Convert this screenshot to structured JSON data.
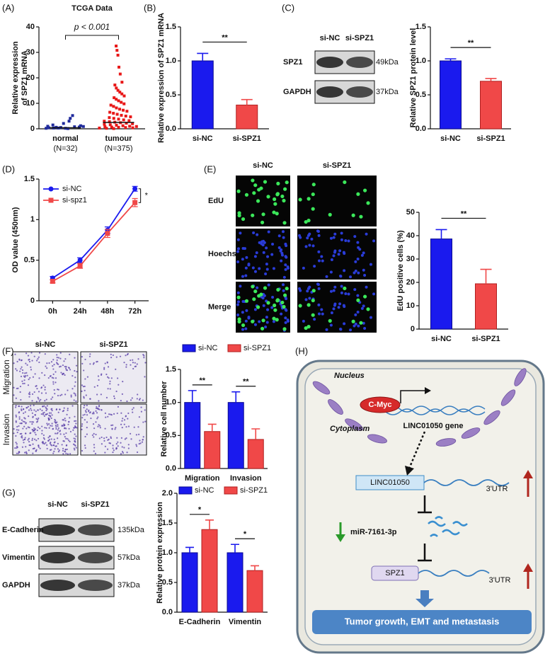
{
  "chart_data": [
    {
      "type": "strip",
      "panel": "(A)",
      "title": "TCGA Data",
      "y_label": [
        "Relative expression",
        "of SPZ1 mRNA"
      ],
      "categories": [
        "normal",
        "tumour"
      ],
      "group_sizes": [
        "(N=32)",
        "(N=375)"
      ],
      "colors": [
        "#1f2a9c",
        "#e81818"
      ],
      "values": [
        [
          0.2,
          0.3,
          0.5,
          0.1,
          0.8,
          1.2,
          0.4,
          0.6,
          2.1,
          3.0,
          5.2,
          0.9,
          1.5,
          0.3,
          0.2,
          4.1,
          0.7,
          1.0
        ],
        [
          32.5,
          30.8,
          28.9,
          24.2,
          21.5,
          18.3,
          17.2,
          16.0,
          15.1,
          14.4,
          13.7,
          12.9,
          12.2,
          11.6,
          11.0,
          10.4,
          9.8,
          9.3,
          8.8,
          8.2,
          7.7,
          7.3,
          6.9,
          6.5,
          6.1,
          5.7,
          5.3,
          5.0,
          4.7,
          4.4,
          4.1,
          3.8,
          3.5,
          3.2,
          3.0,
          2.8,
          2.6,
          2.4,
          2.2,
          2.0,
          1.8,
          1.6,
          1.4,
          1.2,
          1.0,
          0.9,
          0.8,
          0.7,
          0.6,
          0.5,
          0.4,
          0.3,
          0.2,
          0.1
        ]
      ],
      "means": [
        0.4,
        2.5
      ],
      "annotation": "p < 0.001",
      "ylim": [
        0,
        40
      ],
      "yticks": [
        0,
        10,
        20,
        30,
        40
      ]
    },
    {
      "type": "bar",
      "panel": "(B)",
      "y_label": "Relative expression of SPZ1 mRNA",
      "categories": [
        "si-NC",
        "si-SPZ1"
      ],
      "values": [
        1.0,
        0.35
      ],
      "errors": [
        0.11,
        0.08
      ],
      "colors": [
        "#1a1aee",
        "#f04848"
      ],
      "annotation": "**",
      "ylim": [
        0,
        1.5
      ],
      "yticks": [
        {
          "value": 0,
          "label": "0.0"
        },
        0.5,
        {
          "value": 1,
          "label": "1.0"
        },
        1.5
      ]
    },
    {
      "type": "bar",
      "panel": "(C)",
      "y_label": "Relative SPZ1 protein level",
      "categories": [
        "si-NC",
        "si-SPZ1"
      ],
      "values": [
        1.0,
        0.7
      ],
      "errors": [
        0.03,
        0.04
      ],
      "colors": [
        "#1a1aee",
        "#f04848"
      ],
      "annotation": "**",
      "ylim": [
        0,
        1.5
      ],
      "yticks": [
        {
          "value": 0,
          "label": "0.0"
        },
        0.5,
        {
          "value": 1,
          "label": "1.0"
        },
        1.5
      ]
    },
    {
      "type": "line",
      "panel": "(D)",
      "y_label": "OD value (450nm)",
      "categories": [
        "0h",
        "24h",
        "48h",
        "72h"
      ],
      "series": [
        {
          "name": "si-NC",
          "color": "#1a1aee",
          "marker": "circle",
          "values": [
            0.28,
            0.5,
            0.87,
            1.38
          ],
          "errors": [
            0.02,
            0.03,
            0.04,
            0.03
          ]
        },
        {
          "name": "si-spz1",
          "color": "#f04848",
          "marker": "square",
          "values": [
            0.24,
            0.43,
            0.83,
            1.21
          ],
          "errors": [
            0.02,
            0.03,
            0.05,
            0.05
          ]
        }
      ],
      "legend": "upper left",
      "annotation": "*",
      "ylim": [
        0,
        1.5
      ],
      "yticks": [
        0,
        0.5,
        1,
        1.5
      ]
    },
    {
      "type": "bar",
      "panel": "(E)",
      "y_label": "EdU positive cells (%)",
      "categories": [
        "si-NC",
        "si-SPZ1"
      ],
      "values": [
        38.6,
        19.4
      ],
      "errors": [
        4,
        6.2
      ],
      "colors": [
        "#1a1aee",
        "#f04848"
      ],
      "annotation": "**",
      "ylim": [
        0,
        50
      ],
      "yticks": [
        0,
        10,
        20,
        30,
        40,
        50
      ]
    },
    {
      "type": "grouped_bar",
      "panel": "(F)",
      "y_label": "Relative cell number",
      "categories": [
        "Migration",
        "Invasion"
      ],
      "series": [
        {
          "name": "si-NC",
          "color": "#1a1aee",
          "values": [
            1.0,
            1.0
          ],
          "errors": [
            0.18,
            0.16
          ]
        },
        {
          "name": "si-SPZ1",
          "color": "#f04848",
          "values": [
            0.56,
            0.44
          ],
          "errors": [
            0.11,
            0.16
          ]
        }
      ],
      "annotations": [
        "**",
        "**"
      ],
      "legend": "top",
      "ylim": [
        0,
        1.5
      ],
      "yticks": [
        {
          "value": 0,
          "label": "0.0"
        },
        0.5,
        {
          "value": 1,
          "label": "1.0"
        },
        1.5
      ]
    },
    {
      "type": "grouped_bar",
      "panel": "(G)",
      "y_label": "Relative protein expression",
      "categories": [
        "E-Cadherin",
        "Vimentin"
      ],
      "series": [
        {
          "name": "si-NC",
          "color": "#1a1aee",
          "values": [
            1.0,
            1.0
          ],
          "errors": [
            0.09,
            0.14
          ]
        },
        {
          "name": "si-SPZ1",
          "color": "#f04848",
          "values": [
            1.39,
            0.7
          ],
          "errors": [
            0.16,
            0.08
          ]
        }
      ],
      "annotations": [
        "*",
        "*"
      ],
      "legend": "top",
      "ylim": [
        0,
        2
      ],
      "yticks": [
        {
          "value": 0,
          "label": "0.0"
        },
        0.5,
        {
          "value": 1,
          "label": "1.0"
        },
        1.5,
        {
          "value": 2,
          "label": "2.0"
        }
      ]
    }
  ],
  "blots": [
    {
      "lanes": [
        "si-NC",
        "si-SPZ1"
      ],
      "rows": [
        {
          "name": "SPZ1",
          "size": "49kDa"
        },
        {
          "name": "GAPDH",
          "size": "37kDa"
        }
      ]
    },
    {
      "lanes": [
        "si-NC",
        "si-SPZ1"
      ],
      "rows": [
        {
          "name": "E-Cadherin",
          "size": "135kDa"
        },
        {
          "name": "Vimentin",
          "size": "57kDa"
        },
        {
          "name": "GAPDH",
          "size": "37kDa"
        }
      ]
    }
  ],
  "micrographs": {
    "columns": [
      "si-NC",
      "si-SPZ1"
    ],
    "rows": [
      "EdU",
      "Hoechst",
      "Merge"
    ]
  },
  "transwell": {
    "columns": [
      "si-NC",
      "si-SPZ1"
    ],
    "rows": [
      "Migration",
      "Invasion"
    ]
  },
  "diagram": {
    "panel": "(H)",
    "nucleus": "Nucleus",
    "cytoplasm": "Cytoplasm",
    "tf": "C-Myc",
    "gene": "LINC01050 gene",
    "lnc": "LINC01050",
    "utr1": "3'UTR",
    "mirna": "miR-7161-3p",
    "target": "SPZ1",
    "utr2": "3'UTR",
    "outcome": "Tumor growth, EMT and metastasis"
  }
}
